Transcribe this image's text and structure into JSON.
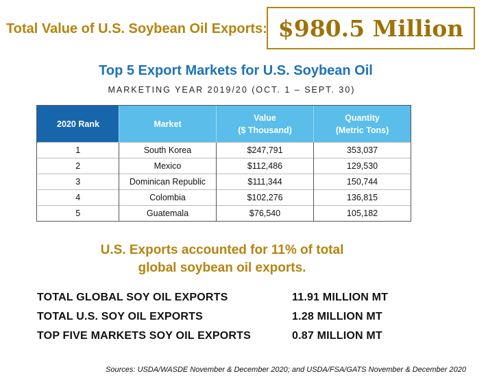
{
  "header": {
    "label": "Total Value of U.S. Soybean Oil Exports:",
    "total_value": "$980.5 Million"
  },
  "table": {
    "title": "Top 5 Export Markets for U.S. Soybean Oil",
    "subtitle": "MARKETING YEAR 2019/20 (OCT. 1 – SEPT. 30)",
    "columns": [
      "2020 Rank",
      "Market",
      "Value\n($ Thousand)",
      "Quantity\n(Metric Tons)"
    ],
    "rows": [
      {
        "rank": "1",
        "market": "South Korea",
        "value": "$247,791",
        "quantity": "353,037"
      },
      {
        "rank": "2",
        "market": "Mexico",
        "value": "$112,486",
        "quantity": "129,530"
      },
      {
        "rank": "3",
        "market": "Dominican Republic",
        "value": "$111,344",
        "quantity": "150,744"
      },
      {
        "rank": "4",
        "market": "Colombia",
        "value": "$102,276",
        "quantity": "136,815"
      },
      {
        "rank": "5",
        "market": "Guatemala",
        "value": "$76,540",
        "quantity": "105,182"
      }
    ]
  },
  "callout": {
    "line1": "U.S. Exports accounted for 11% of total",
    "line2": "global soybean oil exports."
  },
  "stats": [
    {
      "label": "TOTAL GLOBAL SOY OIL EXPORTS",
      "value": "11.91 MILLION MT"
    },
    {
      "label": "TOTAL U.S. SOY OIL EXPORTS",
      "value": "1.28 MILLION MT"
    },
    {
      "label": "TOP FIVE MARKETS SOY OIL EXPORTS",
      "value": "0.87 MILLION MT"
    }
  ],
  "sources": "Sources: USDA/WASDE November & December 2020; and USDA/FSA/GATS November & December 2020",
  "colors": {
    "gold": "#b5840f",
    "title_blue": "#1c73b8",
    "header_dark_blue": "#1766ac",
    "header_light_blue": "#5bbde9"
  }
}
